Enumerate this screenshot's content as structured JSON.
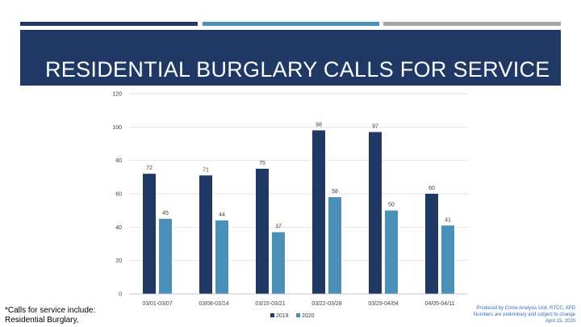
{
  "slide": {
    "title": "RESIDENTIAL BURGLARY CALLS FOR SERVICE",
    "footnote_line1": "*Calls for service include:",
    "footnote_line2": "Residential Burglary,",
    "credit_line1": "Produced by Crime Analysis Unit, RTCC, APD",
    "credit_line2": "Numbers are preliminary and subject to change",
    "credit_line3": "April 15, 2020"
  },
  "colors": {
    "banner": "#1f3864",
    "stripe1": "#1f3864",
    "stripe2": "#4a90b8",
    "stripe3": "#a6a6a6",
    "series_2019": "#1f3864",
    "series_2020": "#4a90b8",
    "credit_text": "#2e6fb5"
  },
  "chart_data": {
    "type": "bar",
    "categories": [
      "03/01-03/07",
      "03/08-03/14",
      "03/15-03/21",
      "03/22-03/28",
      "03/29-04/04",
      "04/05-04/11"
    ],
    "series": [
      {
        "name": "2019",
        "values": [
          72,
          71,
          75,
          98,
          97,
          60
        ]
      },
      {
        "name": "2020",
        "values": [
          45,
          44,
          37,
          58,
          50,
          41
        ]
      }
    ],
    "ylim": [
      0,
      120
    ],
    "yticks": [
      0,
      20,
      40,
      60,
      80,
      100,
      120
    ],
    "grid": true,
    "legend": "bottom",
    "data_labels": true
  }
}
